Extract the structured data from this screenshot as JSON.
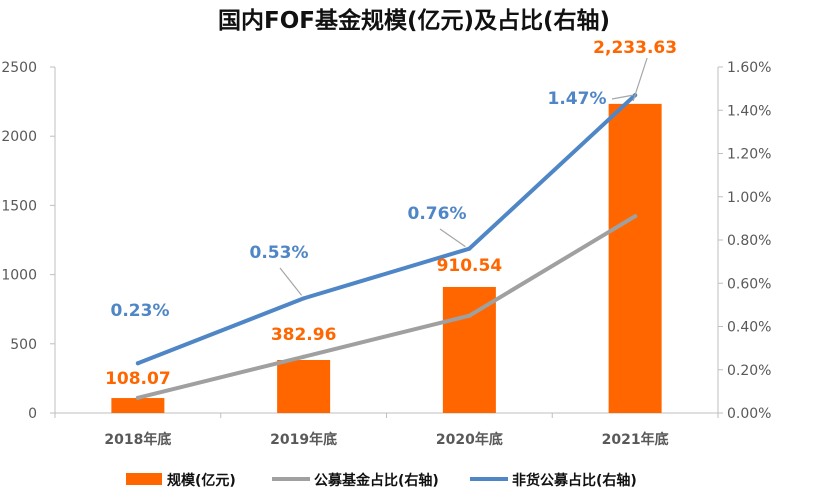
{
  "chart_data": {
    "type": "bar",
    "title": "国内FOF基金规模(亿元)及占比(右轴)",
    "categories": [
      "2018年底",
      "2019年底",
      "2020年底",
      "2021年底"
    ],
    "bar_series": {
      "name": "规模(亿元)",
      "values": [
        108.07,
        382.96,
        910.54,
        2233.63
      ],
      "labels": [
        "108.07",
        "382.96",
        "910.54",
        "2,233.63"
      ],
      "color": "#FF6600"
    },
    "line_series": [
      {
        "name": "公募基金占比(右轴)",
        "values": [
          0.07,
          0.26,
          0.45,
          0.91
        ],
        "color": "#A0A0A0",
        "show_labels": false,
        "labels": [
          "",
          "",
          "",
          ""
        ]
      },
      {
        "name": "非货公募占比(右轴)",
        "values": [
          0.23,
          0.53,
          0.76,
          1.47
        ],
        "color": "#4F86C6",
        "show_labels": true,
        "labels": [
          "0.23%",
          "0.53%",
          "0.76%",
          "1.47%"
        ]
      }
    ],
    "y_left": {
      "min": 0,
      "max": 2500,
      "ticks": [
        0,
        500,
        1000,
        1500,
        2000,
        2500
      ]
    },
    "y_right": {
      "min": 0,
      "max": 1.6,
      "ticks": [
        0,
        0.2,
        0.4,
        0.6,
        0.8,
        1.0,
        1.2,
        1.4,
        1.6
      ],
      "tick_labels": [
        "0.00%",
        "0.20%",
        "0.40%",
        "0.60%",
        "0.80%",
        "1.00%",
        "1.20%",
        "1.40%",
        "1.60%"
      ]
    },
    "grid": false,
    "legend_position": "bottom"
  }
}
